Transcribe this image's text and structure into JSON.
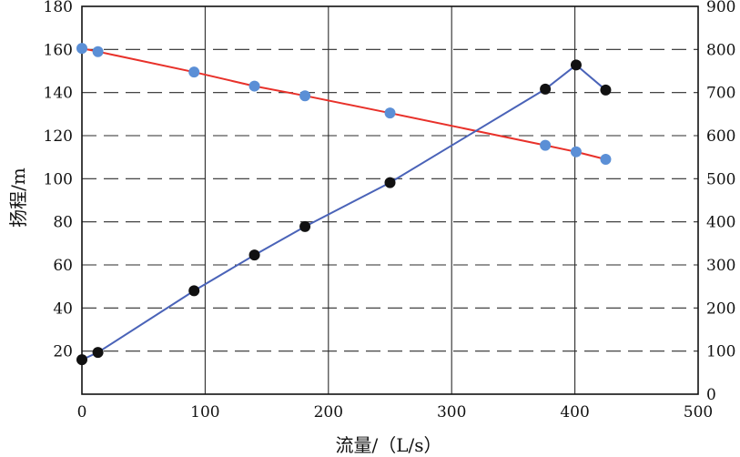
{
  "chart_data": {
    "type": "line",
    "title": "",
    "xlabel": "流量/（L/s）",
    "ylabel": "扬程/m",
    "y2label": "",
    "xlim": [
      0,
      500
    ],
    "ylim": [
      0,
      180
    ],
    "y2lim": [
      0,
      900
    ],
    "xticks": [
      0,
      100,
      200,
      300,
      400,
      500
    ],
    "yticks": [
      20,
      40,
      60,
      80,
      100,
      120,
      140,
      160,
      180
    ],
    "y2ticks": [
      0,
      100,
      200,
      300,
      400,
      500,
      600,
      700,
      800,
      900
    ],
    "grid": {
      "vertical": "solid",
      "horizontal": "dashed"
    },
    "series": [
      {
        "axis": "left",
        "line_color": "#e8312a",
        "marker_color": "#5b8fd6",
        "points": [
          {
            "x": 0,
            "y": 160.5
          },
          {
            "x": 13,
            "y": 159.0
          },
          {
            "x": 91,
            "y": 149.5
          },
          {
            "x": 140,
            "y": 143.0
          },
          {
            "x": 181,
            "y": 138.5
          },
          {
            "x": 250,
            "y": 130.5
          },
          {
            "x": 376,
            "y": 115.5
          },
          {
            "x": 401,
            "y": 112.5
          },
          {
            "x": 425,
            "y": 109.0
          }
        ]
      },
      {
        "axis": "right",
        "line_color": "#4a63b8",
        "marker_color": "#111111",
        "points": [
          {
            "x": 0,
            "y": 80
          },
          {
            "x": 13,
            "y": 97
          },
          {
            "x": 91,
            "y": 240
          },
          {
            "x": 140,
            "y": 323
          },
          {
            "x": 181,
            "y": 389
          },
          {
            "x": 250,
            "y": 491
          },
          {
            "x": 376,
            "y": 708
          },
          {
            "x": 401,
            "y": 764
          },
          {
            "x": 425,
            "y": 706
          }
        ]
      }
    ]
  }
}
